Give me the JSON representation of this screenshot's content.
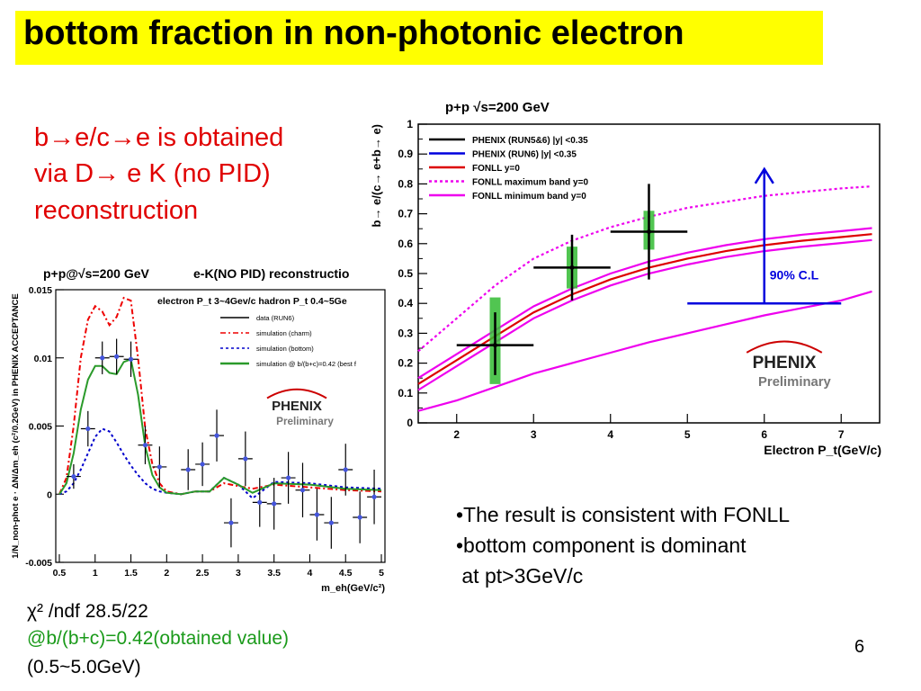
{
  "slide": {
    "title": "bottom fraction in non-photonic electron",
    "note_lines": [
      "b→e/c→e  is obtained",
      "via D→ e K (no PID)",
      "reconstruction"
    ],
    "bullets": [
      "•The result is consistent with FONLL",
      "•bottom component is dominant",
      " at pt>3GeV/c"
    ],
    "chi2_line": "χ² /ndf  28.5/22",
    "fit_line": "@b/(b+c)=0.42(obtained value)",
    "range_line": "(0.5~5.0GeV)",
    "page_number": "6",
    "colors": {
      "title_bg": "#ffff00",
      "note": "#e00000",
      "fit_text": "#1a9a1a"
    }
  },
  "chart_data": [
    {
      "type": "line",
      "title": "p+p   √s=200 GeV",
      "xlabel": "Electron P_t(GeV/c)",
      "ylabel": "b→ e/(c→ e+b→ e)",
      "xlim": [
        1.5,
        7.5
      ],
      "ylim": [
        0,
        1
      ],
      "x_ticks": [
        "2",
        "3",
        "4",
        "5",
        "6",
        "7"
      ],
      "y_ticks": [
        "0",
        "0.1",
        "0.2",
        "0.3",
        "0.4",
        "0.5",
        "0.6",
        "0.7",
        "0.8",
        "0.9",
        "1"
      ],
      "legend": [
        {
          "label": "PHENIX (RUN5&6) |y| <0.35",
          "color": "#000000",
          "style": "solid"
        },
        {
          "label": "PHENIX (RUN6) |y| <0.35",
          "color": "#0000dd",
          "style": "solid"
        },
        {
          "label": "FONLL y=0",
          "color": "#dd0000",
          "style": "solid"
        },
        {
          "label": "FONLL maximum band y=0",
          "color": "#ee00ee",
          "style": "dotted"
        },
        {
          "label": "FONLL minimum band y=0",
          "color": "#ee00ee",
          "style": "solid"
        }
      ],
      "series": [
        {
          "name": "FONLL y=0",
          "color": "#dd0000",
          "x": [
            1.5,
            2,
            2.5,
            3,
            3.5,
            4,
            4.5,
            5,
            5.5,
            6,
            6.5,
            7,
            7.4
          ],
          "y": [
            0.13,
            0.21,
            0.29,
            0.37,
            0.43,
            0.48,
            0.52,
            0.55,
            0.575,
            0.595,
            0.61,
            0.622,
            0.632
          ]
        },
        {
          "name": "FONLL maximum band y=0",
          "color": "#ee00ee",
          "x": [
            1.5,
            2,
            2.5,
            3,
            3.5,
            4,
            4.5,
            5,
            5.5,
            6,
            6.5,
            7,
            7.4
          ],
          "y": [
            0.24,
            0.35,
            0.46,
            0.55,
            0.61,
            0.655,
            0.69,
            0.72,
            0.74,
            0.76,
            0.773,
            0.785,
            0.792
          ]
        },
        {
          "name": "FONLL minimum band y=0",
          "color": "#ee00ee",
          "x": [
            1.5,
            2,
            2.5,
            3,
            3.5,
            4,
            4.5,
            5,
            5.5,
            6,
            6.5,
            7,
            7.4
          ],
          "y": [
            0.04,
            0.075,
            0.12,
            0.165,
            0.2,
            0.235,
            0.27,
            0.3,
            0.33,
            0.36,
            0.385,
            0.41,
            0.44
          ]
        },
        {
          "name": "FONLL upper error",
          "color": "#ee00ee",
          "x": [
            1.5,
            2,
            2.5,
            3,
            3.5,
            4,
            4.5,
            5,
            5.5,
            6,
            6.5,
            7,
            7.4
          ],
          "y": [
            0.15,
            0.23,
            0.31,
            0.39,
            0.45,
            0.5,
            0.54,
            0.57,
            0.595,
            0.615,
            0.63,
            0.642,
            0.652
          ]
        },
        {
          "name": "FONLL lower error",
          "color": "#ee00ee",
          "x": [
            1.5,
            2,
            2.5,
            3,
            3.5,
            4,
            4.5,
            5,
            5.5,
            6,
            6.5,
            7,
            7.4
          ],
          "y": [
            0.11,
            0.19,
            0.27,
            0.35,
            0.41,
            0.46,
            0.5,
            0.53,
            0.555,
            0.575,
            0.59,
            0.602,
            0.612
          ]
        }
      ],
      "points": [
        {
          "x": 2.5,
          "y": 0.26,
          "xerr": 0.5,
          "ylo": 0.16,
          "yhi": 0.37,
          "syslo": 0.13,
          "syshi": 0.42
        },
        {
          "x": 3.5,
          "y": 0.52,
          "xerr": 0.5,
          "ylo": 0.41,
          "yhi": 0.63,
          "syslo": 0.45,
          "syshi": 0.59
        },
        {
          "x": 4.5,
          "y": 0.64,
          "xerr": 0.5,
          "ylo": 0.48,
          "yhi": 0.8,
          "syslo": 0.58,
          "syshi": 0.71
        }
      ],
      "limit": {
        "x_min": 5.0,
        "x_max": 6.0,
        "lower": 0.4,
        "upper_arrow": 0.85,
        "x_arrow": 6.0,
        "label": "90% C.L",
        "color": "#0000dd"
      },
      "logo": {
        "brand": "PHENIX",
        "sub": "Preliminary"
      }
    },
    {
      "type": "line",
      "title": "p+p@√s=200 GeV",
      "subtitle": "e-K(NO PID) reconstructio",
      "panel_text": "electron P_t 3~4Gev/c hadron P_t 0.4~5Ge",
      "xlabel": "m_eh(GeV/c²)",
      "ylabel": "1/N_non-phot e · ΔN/Δm_eh (c²/0.2GeV) in PHENIX ACCEPTANCE",
      "xlim": [
        0.45,
        5.05
      ],
      "ylim": [
        -0.005,
        0.015
      ],
      "x_ticks": [
        "0.5",
        "1",
        "1.5",
        "2",
        "2.5",
        "3",
        "3.5",
        "4",
        "4.5",
        "5"
      ],
      "y_ticks": [
        "-0.005",
        "0",
        "0.005",
        "0.01",
        "0.015"
      ],
      "legend": [
        {
          "label": "data (RUN6)",
          "color": "#000000",
          "style": "solid"
        },
        {
          "label": "simulation (charm)",
          "color": "#ee0000",
          "style": "dashdot"
        },
        {
          "label": "simulation (bottom)",
          "color": "#0000cc",
          "style": "dotted"
        },
        {
          "label": "simulation @ b/(b+c)=0.42 (best f",
          "color": "#2a9a2a",
          "style": "solid"
        }
      ],
      "series": [
        {
          "name": "simulation (charm)",
          "color": "#ee0000",
          "x": [
            0.5,
            0.6,
            0.7,
            0.8,
            0.9,
            1.0,
            1.1,
            1.2,
            1.3,
            1.4,
            1.5,
            1.6,
            1.7,
            1.8,
            1.9,
            2.0,
            2.2,
            2.4,
            2.6,
            2.8,
            3.0,
            3.2,
            3.5,
            4.0,
            4.5,
            5.0
          ],
          "y": [
            0.0,
            0.0012,
            0.005,
            0.01,
            0.0128,
            0.0138,
            0.0134,
            0.0124,
            0.013,
            0.0144,
            0.0142,
            0.01,
            0.0048,
            0.0022,
            0.0008,
            0.0002,
            0.0,
            0.0002,
            0.0002,
            0.0008,
            0.0006,
            0.0004,
            0.0007,
            0.0005,
            0.0003,
            0.0002
          ]
        },
        {
          "name": "simulation (bottom)",
          "color": "#0000cc",
          "x": [
            0.5,
            0.6,
            0.7,
            0.8,
            0.9,
            1.0,
            1.1,
            1.2,
            1.3,
            1.4,
            1.5,
            1.6,
            1.7,
            1.8,
            1.9,
            2.0,
            2.2,
            2.4,
            2.6,
            2.8,
            3.0,
            3.2,
            3.5,
            4.0,
            4.5,
            5.0
          ],
          "y": [
            0.0,
            0.0002,
            0.0008,
            0.0018,
            0.003,
            0.0042,
            0.0048,
            0.0046,
            0.0038,
            0.0029,
            0.0021,
            0.0014,
            0.0008,
            0.0004,
            0.0002,
            0.0001,
            0.0,
            0.0002,
            0.0002,
            0.0012,
            0.0007,
            -0.0003,
            0.0009,
            0.0008,
            0.0005,
            0.0004
          ]
        },
        {
          "name": "simulation @ b/(b+c)=0.42 (best f",
          "color": "#2a9a2a",
          "x": [
            0.5,
            0.6,
            0.7,
            0.8,
            0.9,
            1.0,
            1.1,
            1.2,
            1.3,
            1.4,
            1.5,
            1.6,
            1.7,
            1.8,
            1.9,
            2.0,
            2.2,
            2.4,
            2.6,
            2.8,
            3.0,
            3.2,
            3.5,
            4.0,
            4.5,
            5.0
          ],
          "y": [
            0.0,
            0.0008,
            0.003,
            0.0062,
            0.0084,
            0.0094,
            0.0094,
            0.0089,
            0.0088,
            0.0097,
            0.0099,
            0.0073,
            0.0035,
            0.0014,
            0.0005,
            0.0001,
            0.0,
            0.0002,
            0.0002,
            0.0012,
            0.0007,
            0.0001,
            0.0008,
            0.0007,
            0.0004,
            0.0003
          ]
        }
      ],
      "points": [
        {
          "x": 0.7,
          "y": 0.0013,
          "err": 0.0009
        },
        {
          "x": 0.9,
          "y": 0.0048,
          "err": 0.0013
        },
        {
          "x": 1.1,
          "y": 0.01,
          "err": 0.0012
        },
        {
          "x": 1.3,
          "y": 0.0101,
          "err": 0.0013
        },
        {
          "x": 1.5,
          "y": 0.0099,
          "err": 0.0013
        },
        {
          "x": 1.7,
          "y": 0.0036,
          "err": 0.0014
        },
        {
          "x": 1.9,
          "y": 0.002,
          "err": 0.0015
        },
        {
          "x": 2.3,
          "y": 0.0018,
          "err": 0.0015
        },
        {
          "x": 2.5,
          "y": 0.0022,
          "err": 0.0016
        },
        {
          "x": 2.7,
          "y": 0.0043,
          "err": 0.0019
        },
        {
          "x": 2.9,
          "y": -0.0021,
          "err": 0.0018
        },
        {
          "x": 3.1,
          "y": 0.0026,
          "err": 0.002
        },
        {
          "x": 3.3,
          "y": -0.0006,
          "err": 0.0018
        },
        {
          "x": 3.5,
          "y": -0.0007,
          "err": 0.0019
        },
        {
          "x": 3.7,
          "y": 0.0012,
          "err": 0.0019
        },
        {
          "x": 3.9,
          "y": 0.0003,
          "err": 0.002
        },
        {
          "x": 4.1,
          "y": -0.0015,
          "err": 0.0019
        },
        {
          "x": 4.3,
          "y": -0.0021,
          "err": 0.0019
        },
        {
          "x": 4.5,
          "y": 0.0018,
          "err": 0.0019
        },
        {
          "x": 4.7,
          "y": -0.0017,
          "err": 0.0019
        },
        {
          "x": 4.9,
          "y": -0.0002,
          "err": 0.002
        }
      ],
      "logo": {
        "brand": "PHENIX",
        "sub": "Preliminary"
      }
    }
  ]
}
